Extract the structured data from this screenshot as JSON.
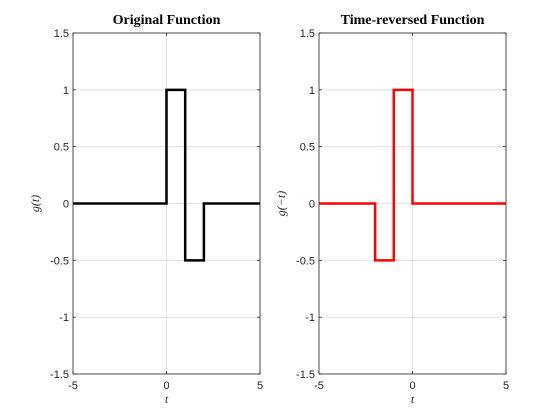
{
  "chart_data": [
    {
      "type": "line",
      "title": "Original Function",
      "xlabel": "t",
      "ylabel": "g(t)",
      "xlim": [
        -5,
        5
      ],
      "ylim": [
        -1.5,
        1.5
      ],
      "xticks": [
        -5,
        0,
        5
      ],
      "yticks": [
        -1.5,
        -1,
        -0.5,
        0,
        0.5,
        1,
        1.5
      ],
      "xtick_labels": [
        "-5",
        "0",
        "5"
      ],
      "ytick_labels": [
        "-1.5",
        "-1",
        "-0.5",
        "0",
        "0.5",
        "1",
        "1.5"
      ],
      "grid": true,
      "color": "#000000",
      "series": [
        {
          "x": [
            -5,
            0,
            0,
            1,
            1,
            2,
            2,
            5
          ],
          "y": [
            0,
            0,
            1,
            1,
            -0.5,
            -0.5,
            0,
            0
          ]
        }
      ]
    },
    {
      "type": "line",
      "title": "Time-reversed Function",
      "xlabel": "t",
      "ylabel": "g(−t)",
      "xlim": [
        -5,
        5
      ],
      "ylim": [
        -1.5,
        1.5
      ],
      "xticks": [
        -5,
        0,
        5
      ],
      "yticks": [
        -1.5,
        -1,
        -0.5,
        0,
        0.5,
        1,
        1.5
      ],
      "xtick_labels": [
        "-5",
        "0",
        "5"
      ],
      "ytick_labels": [
        "-1.5",
        "-1",
        "-0.5",
        "0",
        "0.5",
        "1",
        "1.5"
      ],
      "grid": true,
      "color": "#ff0000",
      "series": [
        {
          "x": [
            -5,
            -2,
            -2,
            -1,
            -1,
            0,
            0,
            5
          ],
          "y": [
            0,
            0,
            -0.5,
            -0.5,
            1,
            1,
            0,
            0
          ]
        }
      ]
    }
  ]
}
